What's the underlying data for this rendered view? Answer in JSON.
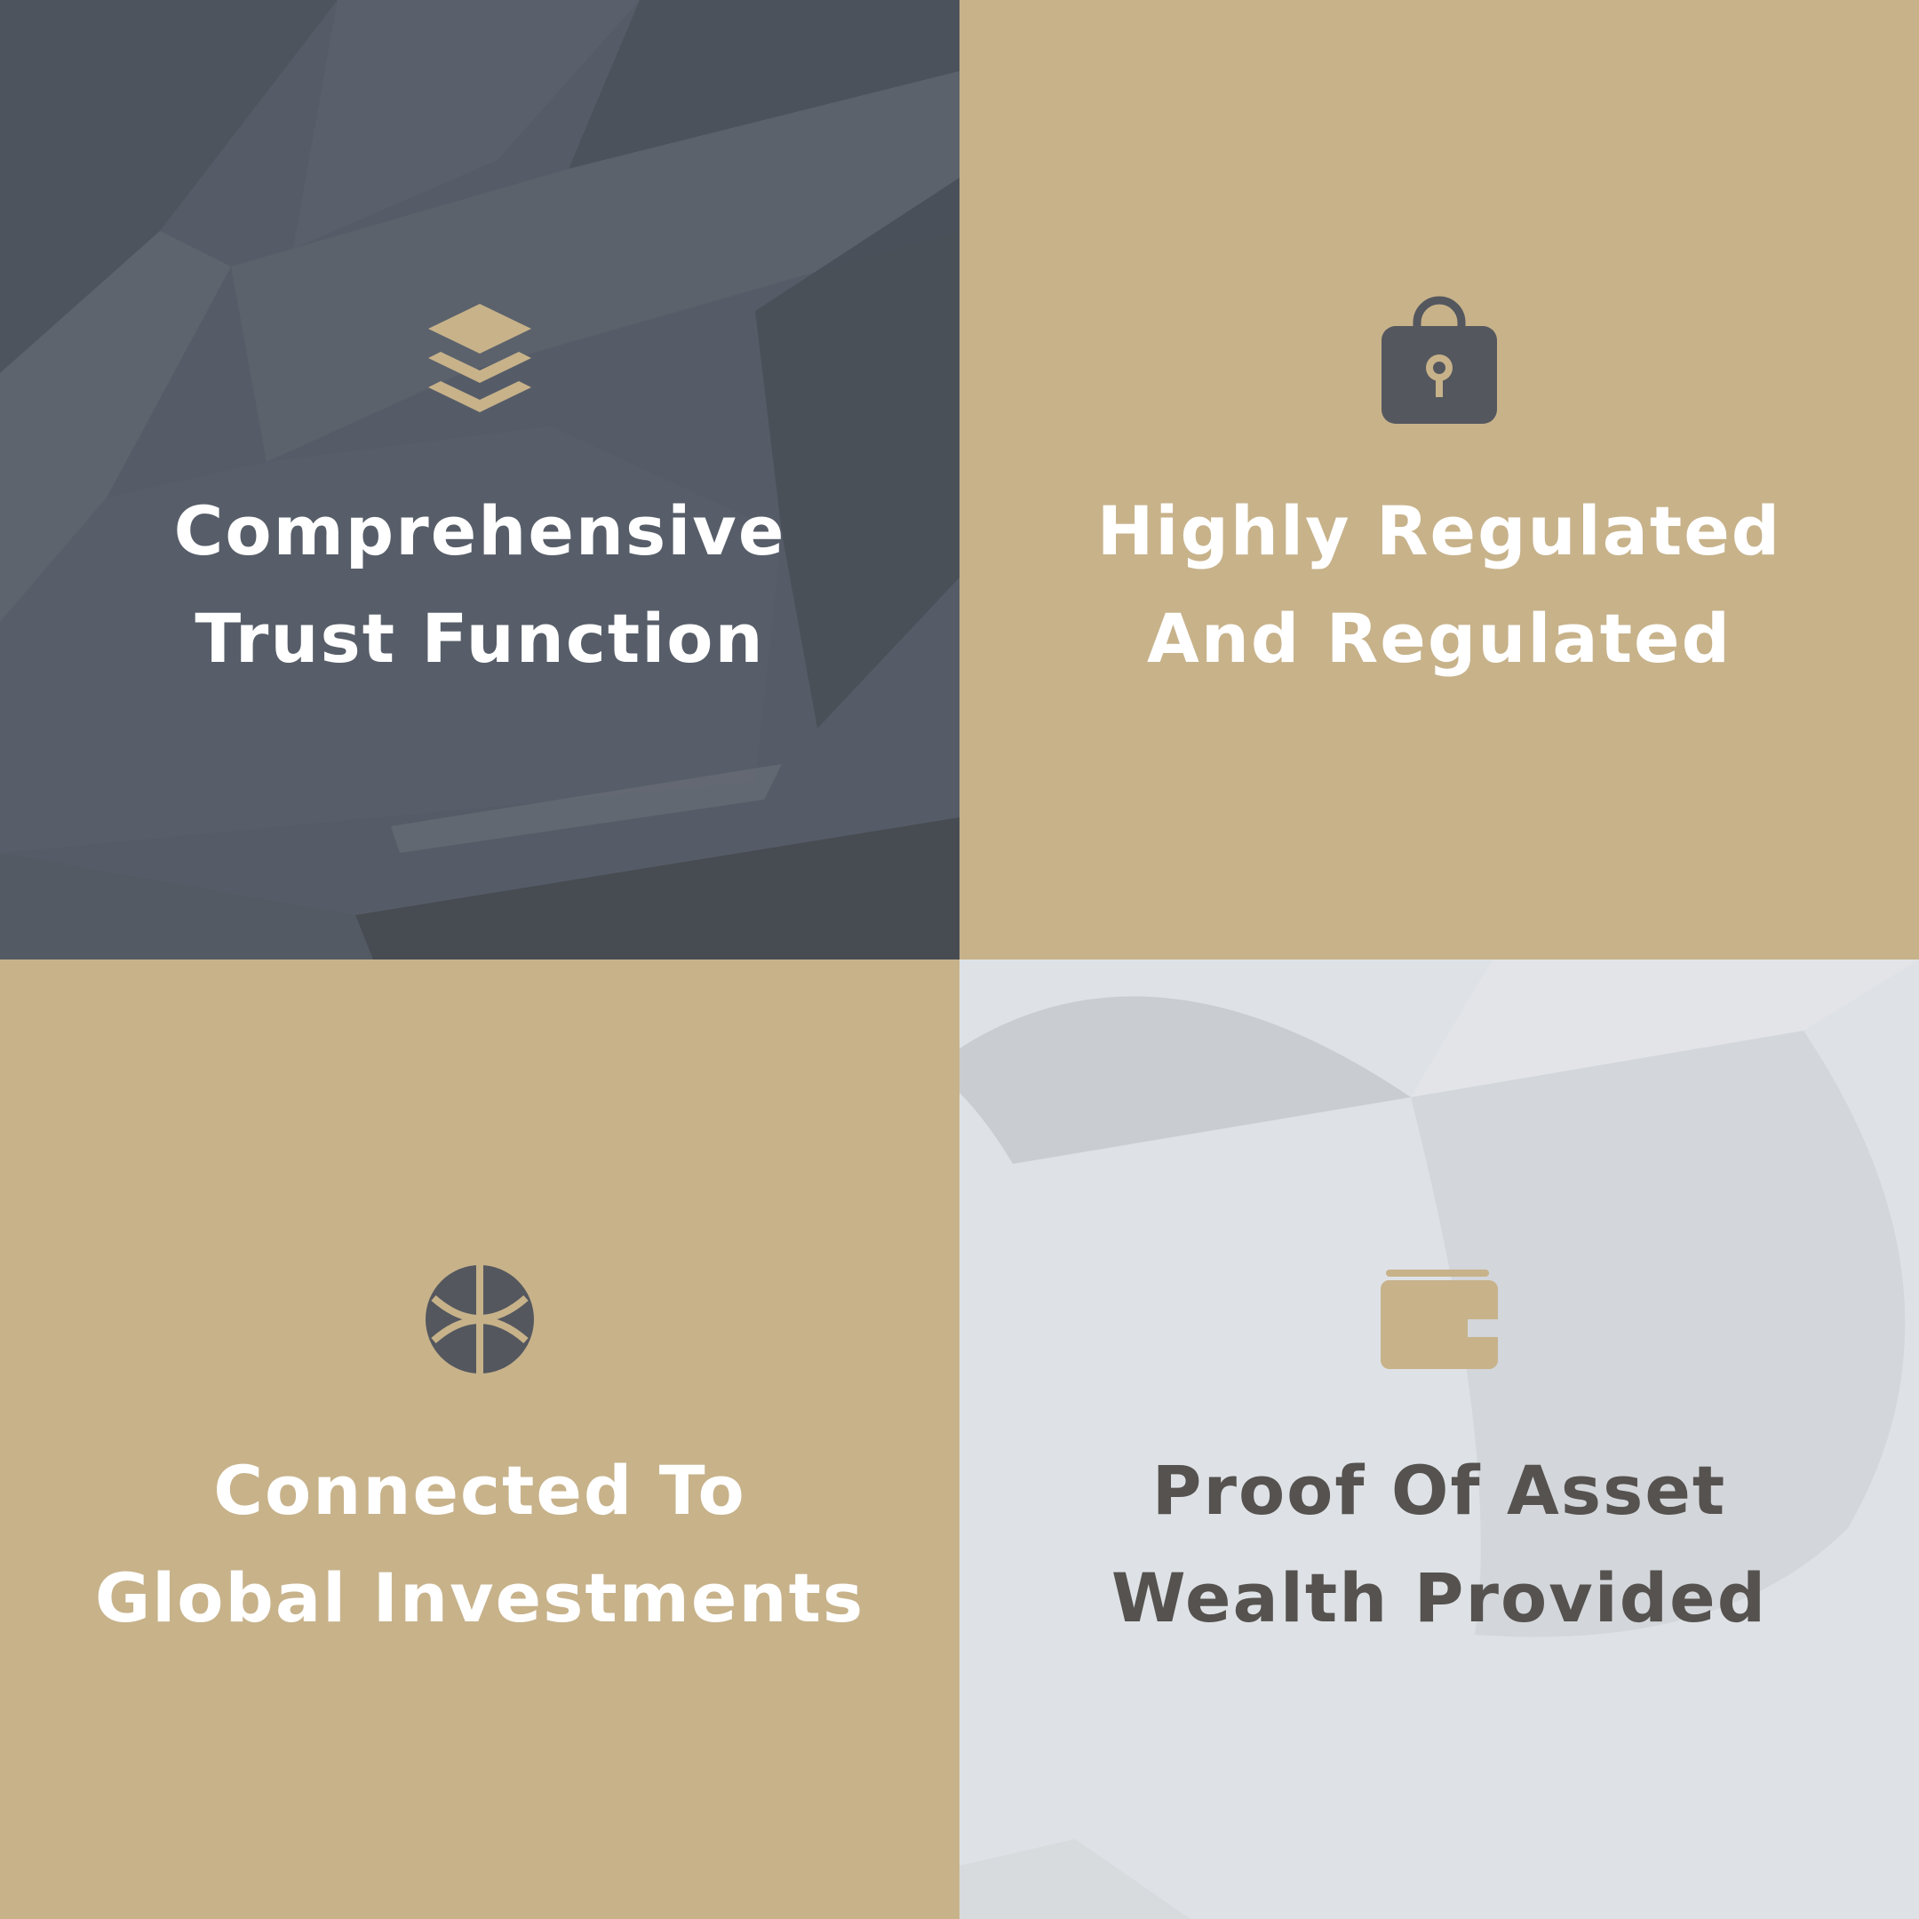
{
  "colors": {
    "gold": "#c7b28a",
    "slate": "#565c67",
    "slate_dark": "#474c55",
    "light_gray": "#dee2e6",
    "icon_dark": "#54575e",
    "text_white": "#ffffff",
    "text_dark": "#55524f"
  },
  "tiles": [
    {
      "icon": "layers-icon",
      "title_line1": "Comprehensive",
      "title_line2": "Trust Function"
    },
    {
      "icon": "lock-icon",
      "title_line1": "Highly Regulated",
      "title_line2": "And Regulated"
    },
    {
      "icon": "basketball-globe-icon",
      "title_line1": "Connected To",
      "title_line2": "Global Investments"
    },
    {
      "icon": "wallet-icon",
      "title_line1": "Proof Of Asset",
      "title_line2": "Wealth Provided"
    }
  ]
}
